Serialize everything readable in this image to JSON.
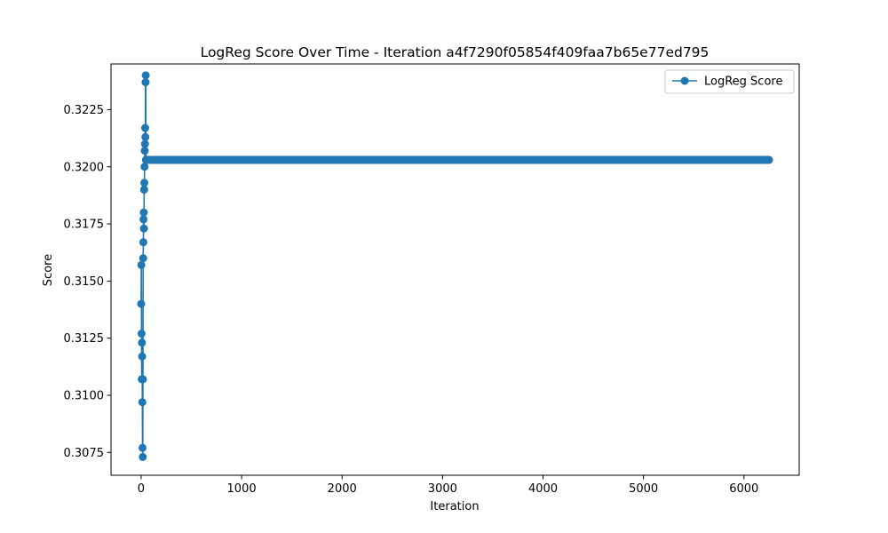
{
  "chart_data": {
    "type": "line",
    "title": "LogReg Score Over Time - Iteration a4f7290f05854f409faa7b65e77ed795",
    "xlabel": "Iteration",
    "ylabel": "Score",
    "xlim": [
      -300,
      6550
    ],
    "ylim": [
      0.3065,
      0.3245
    ],
    "x_ticks": [
      0,
      1000,
      2000,
      3000,
      4000,
      5000,
      6000
    ],
    "x_tick_labels": [
      "0",
      "1000",
      "2000",
      "3000",
      "4000",
      "5000",
      "6000"
    ],
    "y_ticks": [
      0.3075,
      0.31,
      0.3125,
      0.315,
      0.3175,
      0.32,
      0.3225
    ],
    "y_tick_labels": [
      "0.3075",
      "0.3100",
      "0.3125",
      "0.3150",
      "0.3175",
      "0.3200",
      "0.3225"
    ],
    "grid": false,
    "legend_position": "top-right",
    "series": [
      {
        "name": "LogReg Score",
        "color": "#1f77b4",
        "marker": "circle",
        "x": [
          0,
          2,
          4,
          6,
          8,
          10,
          12,
          14,
          16,
          18,
          20,
          22,
          24,
          26,
          28,
          30,
          32,
          34,
          36,
          38,
          40,
          42,
          44,
          46,
          48,
          50
        ],
        "y": [
          0.314,
          0.3157,
          0.3127,
          0.3107,
          0.3123,
          0.3117,
          0.3097,
          0.3077,
          0.3073,
          0.3107,
          0.316,
          0.3167,
          0.3177,
          0.318,
          0.3173,
          0.319,
          0.3193,
          0.32,
          0.3207,
          0.321,
          0.3217,
          0.3213,
          0.3237,
          0.324,
          0.3203,
          0.3203
        ],
        "plateau": {
          "y": 0.3203,
          "x_start": 50,
          "x_end": 6250
        }
      }
    ]
  }
}
